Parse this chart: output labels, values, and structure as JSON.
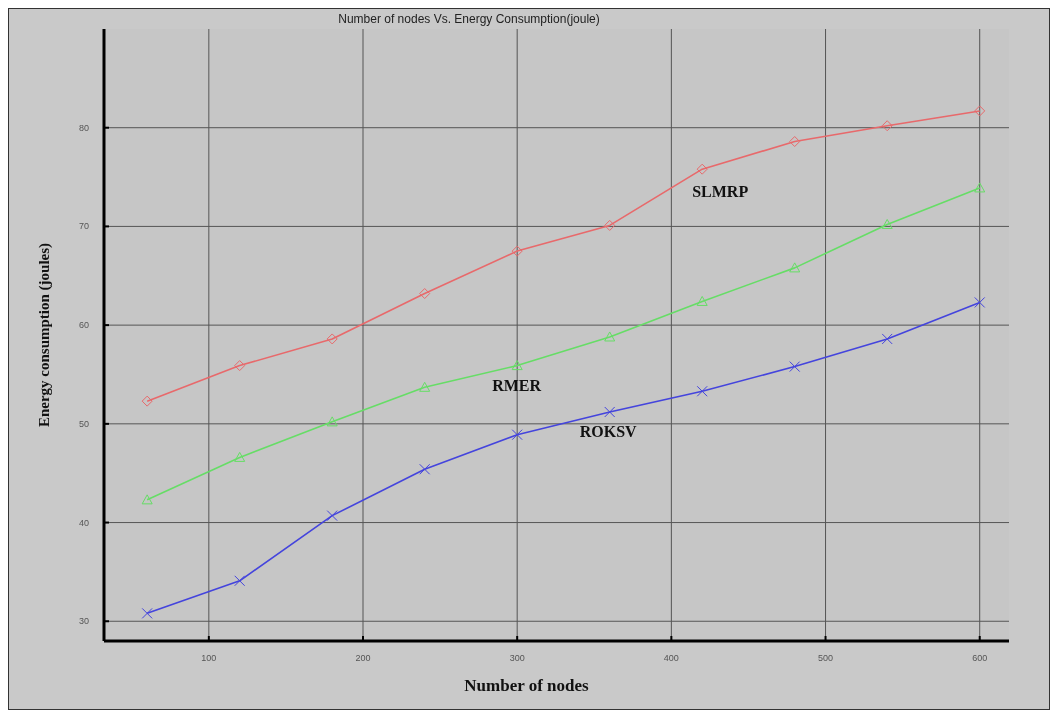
{
  "chart_data": {
    "type": "line",
    "title": "Number of nodes Vs. Energy Consumption(joule)",
    "xlabel": "Number of nodes",
    "ylabel": "Energy consumption (joules)",
    "x": [
      60,
      120,
      180,
      240,
      300,
      360,
      420,
      480,
      540,
      600
    ],
    "series": [
      {
        "name": "SLMRP",
        "color": "#e8696b",
        "marker": "diamond",
        "values": [
          52.3,
          55.9,
          58.6,
          63.2,
          67.5,
          70.1,
          75.8,
          78.6,
          80.2,
          81.7
        ]
      },
      {
        "name": "RMER",
        "color": "#66dd66",
        "marker": "triangle",
        "values": [
          42.3,
          46.6,
          50.2,
          53.7,
          55.9,
          58.8,
          62.4,
          65.8,
          70.2,
          73.9
        ]
      },
      {
        "name": "ROKSV",
        "color": "#4444dd",
        "marker": "cross",
        "values": [
          30.8,
          34.1,
          40.7,
          45.4,
          48.9,
          51.2,
          53.3,
          55.8,
          58.6,
          62.3
        ]
      }
    ],
    "xlim": [
      32,
      619
    ],
    "ylim": [
      28,
      90
    ],
    "xticks": [
      100,
      200,
      300,
      400,
      500,
      600
    ],
    "yticks": [
      30,
      40,
      50,
      60,
      70,
      80
    ],
    "grid": true,
    "line_style": "solid"
  }
}
